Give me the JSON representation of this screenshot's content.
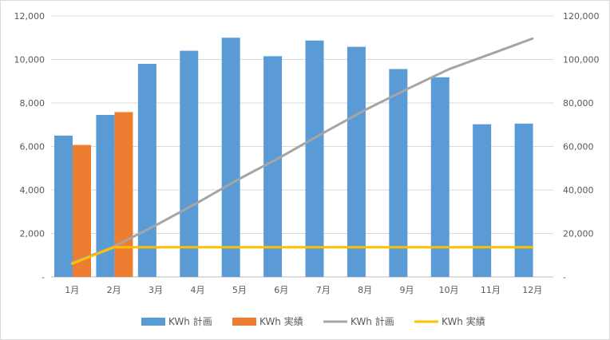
{
  "chart_data": {
    "type": "bar",
    "categories": [
      "1月",
      "2月",
      "3月",
      "4月",
      "5月",
      "6月",
      "7月",
      "8月",
      "9月",
      "10月",
      "11月",
      "12月"
    ],
    "series": [
      {
        "name": "KWh 計画",
        "kind": "bar",
        "axis": "left",
        "color": "#5b9bd5",
        "values": [
          6500,
          7450,
          9800,
          10400,
          11000,
          10150,
          10870,
          10580,
          9560,
          9180,
          7020,
          7050
        ]
      },
      {
        "name": "KWh 実績",
        "kind": "bar",
        "axis": "left",
        "color": "#ed7d31",
        "values": [
          6070,
          7580,
          null,
          null,
          null,
          null,
          null,
          null,
          null,
          null,
          null,
          null
        ]
      },
      {
        "name": "KWh 計画",
        "kind": "line",
        "axis": "right",
        "color": "#a5a5a5",
        "values": [
          6500,
          13950,
          23750,
          34150,
          45150,
          55300,
          66170,
          76750,
          86310,
          95490,
          102510,
          109560
        ]
      },
      {
        "name": "KWh 実績",
        "kind": "line",
        "axis": "right",
        "color": "#ffc000",
        "values": [
          6070,
          13650,
          13650,
          13650,
          13650,
          13650,
          13650,
          13650,
          13650,
          13650,
          13650,
          13650
        ]
      }
    ],
    "y_left": {
      "ylim": [
        0,
        12000
      ],
      "ticks": [
        "-",
        "2,000",
        "4,000",
        "6,000",
        "8,000",
        "10,000",
        "12,000"
      ]
    },
    "y_right": {
      "ylim": [
        0,
        120000
      ],
      "ticks": [
        "-",
        "20,000",
        "40,000",
        "60,000",
        "80,000",
        "100,000",
        "120,000"
      ]
    },
    "grid": true,
    "legend": "bottom"
  }
}
